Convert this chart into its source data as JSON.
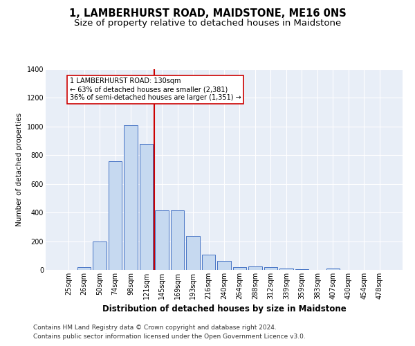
{
  "title": "1, LAMBERHURST ROAD, MAIDSTONE, ME16 0NS",
  "subtitle": "Size of property relative to detached houses in Maidstone",
  "xlabel": "Distribution of detached houses by size in Maidstone",
  "ylabel": "Number of detached properties",
  "bar_labels": [
    "25sqm",
    "26sqm",
    "50sqm",
    "74sqm",
    "98sqm",
    "121sqm",
    "145sqm",
    "169sqm",
    "193sqm",
    "216sqm",
    "240sqm",
    "264sqm",
    "288sqm",
    "312sqm",
    "339sqm",
    "359sqm",
    "383sqm",
    "407sqm",
    "430sqm",
    "454sqm",
    "478sqm"
  ],
  "bar_values": [
    0,
    20,
    200,
    760,
    1010,
    880,
    415,
    415,
    235,
    105,
    65,
    20,
    25,
    20,
    10,
    5,
    0,
    10,
    0,
    0,
    0
  ],
  "bar_color": "#c6d9f0",
  "bar_edgecolor": "#4472c4",
  "vline_color": "#cc0000",
  "vline_x": 5.5,
  "annotation_text": "1 LAMBERHURST ROAD: 130sqm\n← 63% of detached houses are smaller (2,381)\n36% of semi-detached houses are larger (1,351) →",
  "annotation_box_facecolor": "#ffffff",
  "annotation_box_edgecolor": "#cc0000",
  "ylim": [
    0,
    1400
  ],
  "yticks": [
    0,
    200,
    400,
    600,
    800,
    1000,
    1200,
    1400
  ],
  "plot_bg_color": "#e8eef7",
  "grid_color": "#ffffff",
  "title_fontsize": 10.5,
  "subtitle_fontsize": 9.5,
  "xlabel_fontsize": 8.5,
  "ylabel_fontsize": 7.5,
  "tick_fontsize": 7,
  "annotation_fontsize": 7,
  "footer_fontsize": 6.5,
  "footer1": "Contains HM Land Registry data © Crown copyright and database right 2024.",
  "footer2": "Contains public sector information licensed under the Open Government Licence v3.0."
}
